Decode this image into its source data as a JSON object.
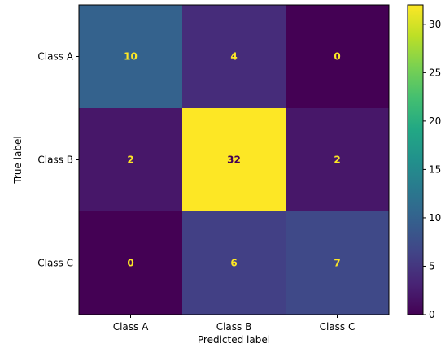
{
  "chart_data": {
    "type": "heatmap",
    "title": "",
    "xlabel": "Predicted label",
    "ylabel": "True label",
    "x_categories": [
      "Class A",
      "Class B",
      "Class C"
    ],
    "y_categories": [
      "Class A",
      "Class B",
      "Class C"
    ],
    "matrix": [
      [
        10,
        4,
        0
      ],
      [
        2,
        32,
        2
      ],
      [
        0,
        6,
        7
      ]
    ],
    "colormap": "viridis",
    "value_range": [
      0,
      32
    ],
    "colorbar": {
      "ticks": [
        0,
        5,
        10,
        15,
        20,
        25,
        30
      ],
      "tick_labels": [
        "0",
        "5",
        "10",
        "15",
        "20",
        "25",
        "30"
      ]
    },
    "cell_label_colors": {
      "on_dark": "#fde725",
      "on_light": "#440154"
    }
  }
}
